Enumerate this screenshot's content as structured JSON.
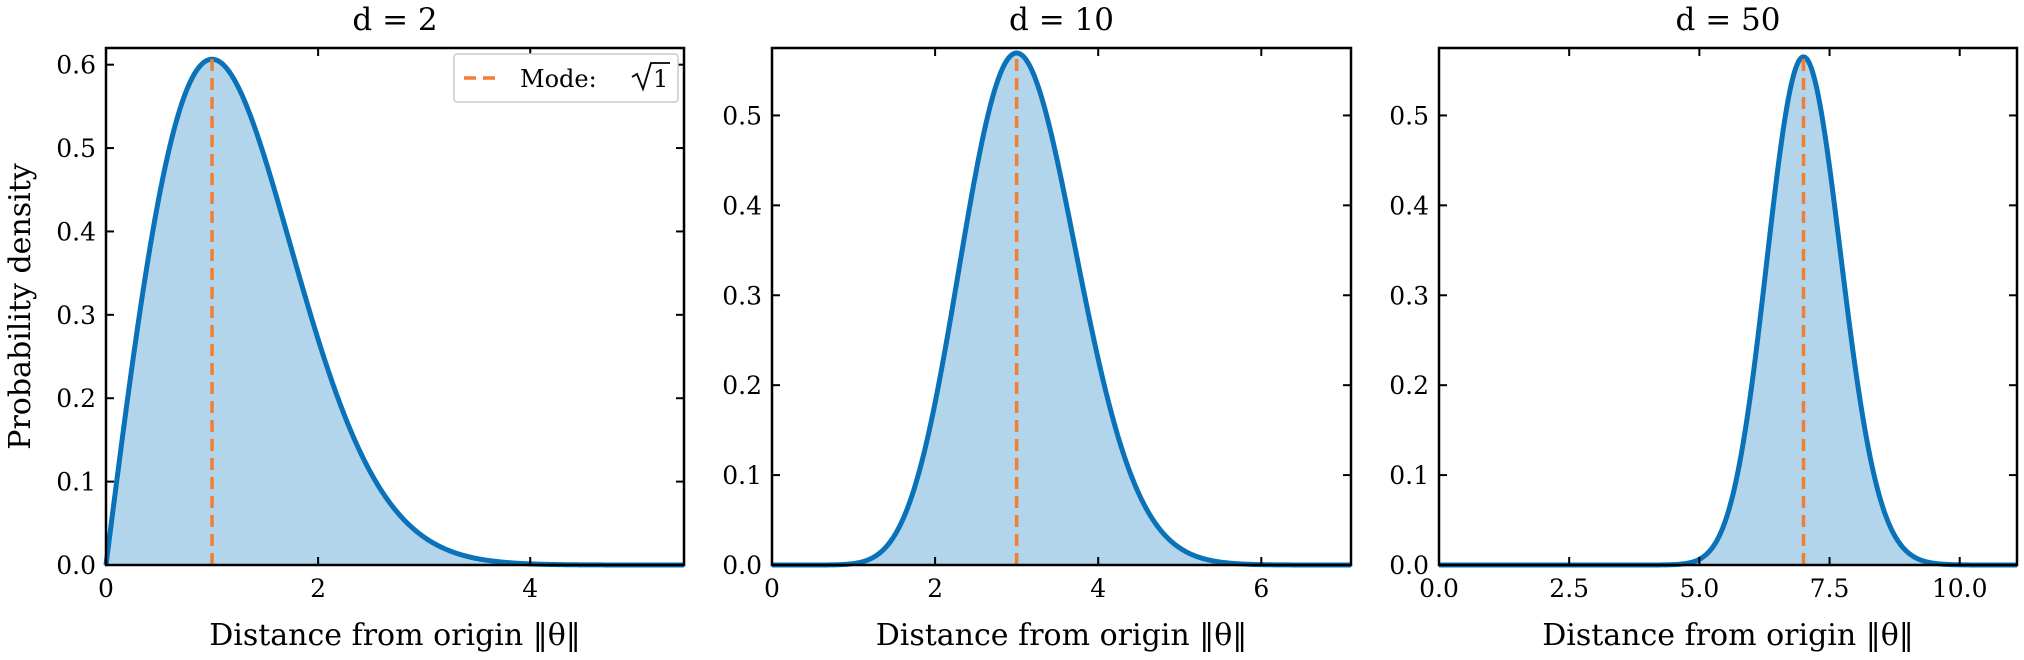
{
  "colors": {
    "curve": "#0a72b8",
    "fill": "#b3d5eb",
    "mode_line": "#f07f34",
    "axes": "#000000",
    "background": "#ffffff"
  },
  "chart_data": [
    {
      "type": "area",
      "title": "d = 2",
      "xlabel": "Distance from origin ‖θ‖",
      "ylabel": "Probability density",
      "dimension": 2,
      "mode": 1.0,
      "xlim": [
        0,
        5.45
      ],
      "ylim": [
        0,
        0.62
      ],
      "xticks": [
        0,
        2,
        4
      ],
      "xtick_labels": [
        "0",
        "2",
        "4"
      ],
      "yticks": [
        0.0,
        0.1,
        0.2,
        0.3,
        0.4,
        0.5,
        0.6
      ],
      "ytick_labels": [
        "0.0",
        "0.1",
        "0.2",
        "0.3",
        "0.4",
        "0.5",
        "0.6"
      ],
      "legend": {
        "label": "Mode:",
        "value_radicand": "1",
        "placement": "upper right"
      }
    },
    {
      "type": "area",
      "title": "d = 10",
      "xlabel": "Distance from origin ‖θ‖",
      "ylabel": "",
      "dimension": 10,
      "mode": 3.0,
      "xlim": [
        0,
        7.1
      ],
      "ylim": [
        0,
        0.575
      ],
      "xticks": [
        0,
        2,
        4,
        6
      ],
      "xtick_labels": [
        "0",
        "2",
        "4",
        "6"
      ],
      "yticks": [
        0.0,
        0.1,
        0.2,
        0.3,
        0.4,
        0.5
      ],
      "ytick_labels": [
        "0.0",
        "0.1",
        "0.2",
        "0.3",
        "0.4",
        "0.5"
      ]
    },
    {
      "type": "area",
      "title": "d = 50",
      "xlabel": "Distance from origin ‖θ‖",
      "ylabel": "",
      "dimension": 50,
      "mode": 7.0,
      "xlim": [
        0,
        11.1
      ],
      "ylim": [
        0,
        0.575
      ],
      "xticks": [
        0.0,
        2.5,
        5.0,
        7.5,
        10.0
      ],
      "xtick_labels": [
        "0.0",
        "2.5",
        "5.0",
        "7.5",
        "10.0"
      ],
      "yticks": [
        0.0,
        0.1,
        0.2,
        0.3,
        0.4,
        0.5
      ],
      "ytick_labels": [
        "0.0",
        "0.1",
        "0.2",
        "0.3",
        "0.4",
        "0.5"
      ]
    }
  ]
}
